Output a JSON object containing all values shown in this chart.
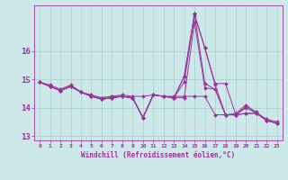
{
  "x": [
    0,
    1,
    2,
    3,
    4,
    5,
    6,
    7,
    8,
    9,
    10,
    11,
    12,
    13,
    14,
    15,
    16,
    17,
    18,
    19,
    20,
    21,
    22,
    23
  ],
  "series": [
    [
      14.9,
      14.8,
      14.65,
      14.8,
      14.55,
      14.45,
      14.35,
      14.4,
      14.45,
      14.4,
      14.4,
      14.45,
      14.4,
      14.4,
      14.4,
      14.4,
      14.4,
      13.75,
      13.75,
      13.8,
      14.1,
      13.8,
      13.6,
      13.5
    ],
    [
      14.9,
      14.75,
      14.6,
      14.75,
      14.55,
      14.4,
      14.3,
      14.35,
      14.4,
      14.35,
      13.65,
      14.45,
      14.4,
      14.35,
      14.35,
      17.0,
      14.7,
      14.65,
      13.75,
      13.75,
      13.8,
      13.8,
      13.55,
      13.45
    ],
    [
      14.9,
      14.75,
      14.6,
      14.75,
      14.55,
      14.4,
      14.3,
      14.35,
      14.4,
      14.35,
      13.65,
      14.45,
      14.4,
      14.35,
      15.1,
      17.3,
      14.85,
      14.65,
      13.75,
      13.75,
      13.8,
      13.8,
      13.55,
      13.45
    ],
    [
      14.9,
      14.75,
      14.6,
      14.75,
      14.55,
      14.4,
      14.3,
      14.35,
      14.4,
      14.35,
      13.65,
      14.45,
      14.4,
      14.35,
      14.9,
      17.25,
      16.1,
      14.8,
      13.75,
      13.75,
      14.0,
      13.8,
      13.55,
      13.45
    ],
    [
      14.9,
      14.75,
      14.6,
      14.75,
      14.55,
      14.4,
      14.35,
      14.4,
      14.4,
      14.35,
      13.65,
      14.45,
      14.4,
      14.35,
      15.1,
      17.3,
      16.1,
      14.85,
      14.85,
      13.75,
      14.05,
      13.85,
      13.55,
      13.45
    ]
  ],
  "line_color": "#993399",
  "marker": "D",
  "markersize": 2.0,
  "linewidth": 0.7,
  "xlabel": "Windchill (Refroidissement éolien,°C)",
  "xlim": [
    -0.5,
    23.5
  ],
  "ylim": [
    12.85,
    17.6
  ],
  "yticks": [
    13,
    14,
    15,
    16
  ],
  "xticks": [
    0,
    1,
    2,
    3,
    4,
    5,
    6,
    7,
    8,
    9,
    10,
    11,
    12,
    13,
    14,
    15,
    16,
    17,
    18,
    19,
    20,
    21,
    22,
    23
  ],
  "bg_color": "#cce8e8",
  "grid_color": "#aacece",
  "axis_color": "#993399",
  "tick_color": "#993399",
  "xlabel_color": "#993399"
}
